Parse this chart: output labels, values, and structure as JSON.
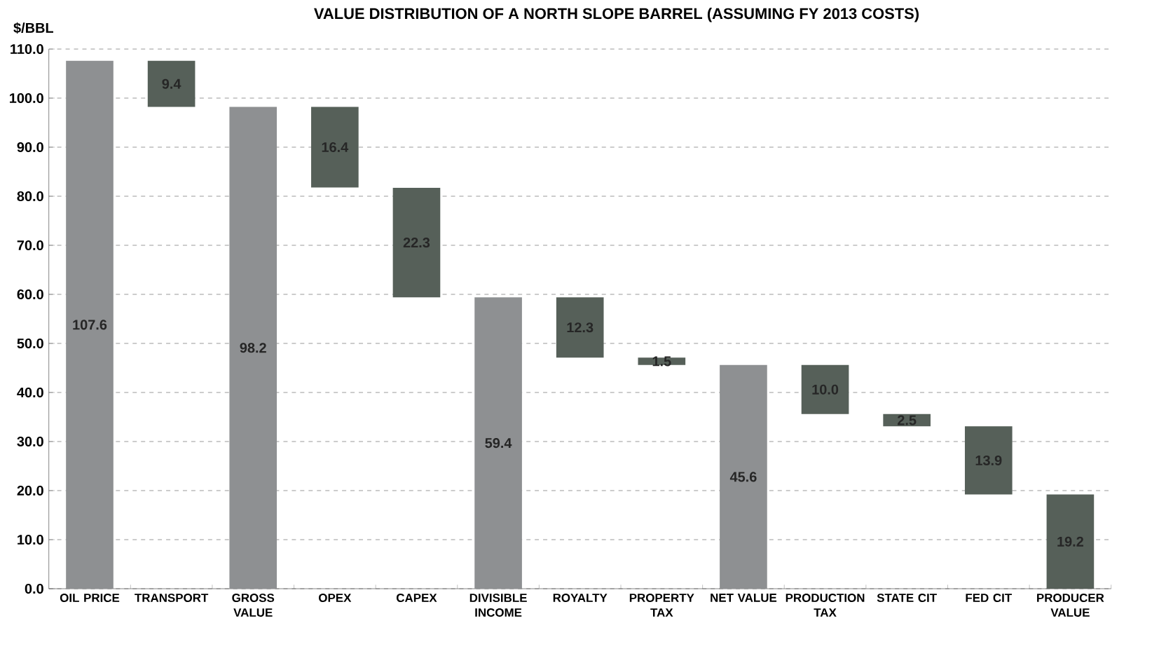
{
  "chart_data": {
    "type": "bar",
    "title": "VALUE DISTRIBUTION OF A NORTH SLOPE BARREL (ASSUMING FY 2013 COSTS)",
    "ylabel": "$/BBL",
    "categories": [
      "OIL PRICE",
      "TRANSPORT",
      "GROSS VALUE",
      "OPEX",
      "CAPEX",
      "DIVISIBLE INCOME",
      "ROYALTY",
      "PROPERTY TAX",
      "NET VALUE",
      "PRODUCTION TAX",
      "STATE CIT",
      "FED CIT",
      "PRODUCER VALUE"
    ],
    "values": [
      107.6,
      9.4,
      98.2,
      16.4,
      22.3,
      59.4,
      12.3,
      1.5,
      45.6,
      10.0,
      2.5,
      13.9,
      19.2
    ],
    "base": [
      0,
      98.2,
      0,
      81.8,
      59.4,
      0,
      47.1,
      45.6,
      0,
      35.6,
      33.1,
      19.2,
      0
    ],
    "colors": [
      "#8e9092",
      "#566059",
      "#8e9092",
      "#566059",
      "#566059",
      "#8e9092",
      "#566059",
      "#566059",
      "#8e9092",
      "#566059",
      "#566059",
      "#566059",
      "#566059"
    ],
    "ylim": [
      0,
      110
    ],
    "yticks": [
      {
        "value": 0,
        "label": "0.0"
      },
      {
        "value": 10,
        "label": "10.0"
      },
      {
        "value": 20,
        "label": "20.0"
      },
      {
        "value": 30,
        "label": "30.0"
      },
      {
        "value": 40,
        "label": "40.0"
      },
      {
        "value": 50,
        "label": "50.0"
      },
      {
        "value": 60,
        "label": "60.0"
      },
      {
        "value": 70,
        "label": "70.0"
      },
      {
        "value": 80,
        "label": "80.0"
      },
      {
        "value": 90,
        "label": "90.0"
      },
      {
        "value": 100,
        "label": "100.0"
      },
      {
        "value": 110,
        "label": "110.0"
      }
    ],
    "value_labels": [
      "107.6",
      "9.4",
      "98.2",
      "16.4",
      "22.3",
      "59.4",
      "12.3",
      "1.5",
      "45.6",
      "10.0",
      "2.5",
      "13.9",
      "19.2"
    ],
    "grid": "y"
  }
}
